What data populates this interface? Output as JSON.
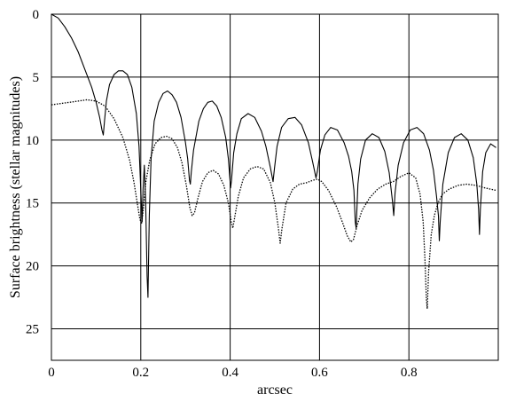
{
  "chart_data": {
    "type": "line",
    "title": "",
    "xlabel": "arcsec",
    "ylabel": "Surface brightness (stellar magnitudes)",
    "xlim": [
      0,
      1.0
    ],
    "ylim": [
      27.5,
      0
    ],
    "y_inverted": true,
    "grid": true,
    "legend": "none",
    "x_ticks": [
      0,
      0.2,
      0.4,
      0.6,
      0.8
    ],
    "x_tick_labels": [
      "0",
      "0.2",
      "0.4",
      "0.6",
      "0.8"
    ],
    "y_ticks": [
      0,
      5,
      10,
      15,
      20,
      25
    ],
    "y_tick_labels": [
      "0",
      "5",
      "10",
      "15",
      "20",
      "25"
    ],
    "series": [
      {
        "style": "solid",
        "color": "#000000",
        "points": [
          [
            0.0,
            0.0
          ],
          [
            0.015,
            0.3
          ],
          [
            0.03,
            1.0
          ],
          [
            0.045,
            1.9
          ],
          [
            0.06,
            3.0
          ],
          [
            0.075,
            4.4
          ],
          [
            0.09,
            5.8
          ],
          [
            0.1,
            7.0
          ],
          [
            0.108,
            8.2
          ],
          [
            0.113,
            9.2
          ],
          [
            0.116,
            9.6
          ],
          [
            0.119,
            8.4
          ],
          [
            0.123,
            6.9
          ],
          [
            0.13,
            5.6
          ],
          [
            0.14,
            4.8
          ],
          [
            0.15,
            4.5
          ],
          [
            0.16,
            4.5
          ],
          [
            0.17,
            4.8
          ],
          [
            0.18,
            5.8
          ],
          [
            0.19,
            7.9
          ],
          [
            0.196,
            10.5
          ],
          [
            0.2,
            14.0
          ],
          [
            0.203,
            16.5
          ],
          [
            0.205,
            14.0
          ],
          [
            0.208,
            12.0
          ],
          [
            0.211,
            15.0
          ],
          [
            0.214,
            20.8
          ],
          [
            0.216,
            22.5
          ],
          [
            0.219,
            16.0
          ],
          [
            0.223,
            11.5
          ],
          [
            0.23,
            8.5
          ],
          [
            0.24,
            7.0
          ],
          [
            0.25,
            6.3
          ],
          [
            0.26,
            6.1
          ],
          [
            0.27,
            6.4
          ],
          [
            0.28,
            7.0
          ],
          [
            0.29,
            8.2
          ],
          [
            0.3,
            10.2
          ],
          [
            0.305,
            11.5
          ],
          [
            0.309,
            13.2
          ],
          [
            0.311,
            13.5
          ],
          [
            0.313,
            12.5
          ],
          [
            0.318,
            10.8
          ],
          [
            0.33,
            8.5
          ],
          [
            0.34,
            7.5
          ],
          [
            0.35,
            7.0
          ],
          [
            0.36,
            6.9
          ],
          [
            0.37,
            7.3
          ],
          [
            0.38,
            8.2
          ],
          [
            0.39,
            9.8
          ],
          [
            0.396,
            11.5
          ],
          [
            0.401,
            13.8
          ],
          [
            0.403,
            13.2
          ],
          [
            0.408,
            11.0
          ],
          [
            0.415,
            9.5
          ],
          [
            0.425,
            8.3
          ],
          [
            0.44,
            7.9
          ],
          [
            0.455,
            8.2
          ],
          [
            0.47,
            9.3
          ],
          [
            0.48,
            10.5
          ],
          [
            0.49,
            12.2
          ],
          [
            0.496,
            13.3
          ],
          [
            0.499,
            12.3
          ],
          [
            0.505,
            10.5
          ],
          [
            0.515,
            9.0
          ],
          [
            0.53,
            8.3
          ],
          [
            0.545,
            8.2
          ],
          [
            0.56,
            8.8
          ],
          [
            0.575,
            10.2
          ],
          [
            0.585,
            11.8
          ],
          [
            0.592,
            13.0
          ],
          [
            0.595,
            12.5
          ],
          [
            0.602,
            10.8
          ],
          [
            0.612,
            9.6
          ],
          [
            0.625,
            9.0
          ],
          [
            0.64,
            9.2
          ],
          [
            0.655,
            10.2
          ],
          [
            0.665,
            11.3
          ],
          [
            0.672,
            12.5
          ],
          [
            0.677,
            14.0
          ],
          [
            0.68,
            16.5
          ],
          [
            0.682,
            17.0
          ],
          [
            0.686,
            13.5
          ],
          [
            0.692,
            11.5
          ],
          [
            0.703,
            10.0
          ],
          [
            0.718,
            9.5
          ],
          [
            0.733,
            9.8
          ],
          [
            0.746,
            10.9
          ],
          [
            0.756,
            12.6
          ],
          [
            0.763,
            14.8
          ],
          [
            0.766,
            16.0
          ],
          [
            0.769,
            14.2
          ],
          [
            0.776,
            12.0
          ],
          [
            0.788,
            10.2
          ],
          [
            0.803,
            9.2
          ],
          [
            0.818,
            9.0
          ],
          [
            0.833,
            9.5
          ],
          [
            0.846,
            10.8
          ],
          [
            0.855,
            12.4
          ],
          [
            0.862,
            14.5
          ],
          [
            0.866,
            16.0
          ],
          [
            0.868,
            18.0
          ],
          [
            0.87,
            16.5
          ],
          [
            0.876,
            13.5
          ],
          [
            0.888,
            11.0
          ],
          [
            0.902,
            9.8
          ],
          [
            0.917,
            9.5
          ],
          [
            0.932,
            10.0
          ],
          [
            0.944,
            11.4
          ],
          [
            0.952,
            13.5
          ],
          [
            0.956,
            15.5
          ],
          [
            0.958,
            17.5
          ],
          [
            0.96,
            15.5
          ],
          [
            0.965,
            12.5
          ],
          [
            0.972,
            11.0
          ],
          [
            0.983,
            10.3
          ],
          [
            0.995,
            10.6
          ]
        ]
      },
      {
        "style": "dotted",
        "color": "#000000",
        "points": [
          [
            0.0,
            7.2
          ],
          [
            0.02,
            7.1
          ],
          [
            0.04,
            7.0
          ],
          [
            0.06,
            6.9
          ],
          [
            0.08,
            6.8
          ],
          [
            0.1,
            6.9
          ],
          [
            0.12,
            7.3
          ],
          [
            0.14,
            8.3
          ],
          [
            0.16,
            9.8
          ],
          [
            0.175,
            11.6
          ],
          [
            0.185,
            13.4
          ],
          [
            0.192,
            15.0
          ],
          [
            0.198,
            16.3
          ],
          [
            0.202,
            16.6
          ],
          [
            0.206,
            15.4
          ],
          [
            0.211,
            13.4
          ],
          [
            0.22,
            11.6
          ],
          [
            0.232,
            10.3
          ],
          [
            0.245,
            9.8
          ],
          [
            0.258,
            9.7
          ],
          [
            0.27,
            9.9
          ],
          [
            0.282,
            10.6
          ],
          [
            0.292,
            11.8
          ],
          [
            0.302,
            13.6
          ],
          [
            0.31,
            15.4
          ],
          [
            0.315,
            16.0
          ],
          [
            0.32,
            15.8
          ],
          [
            0.328,
            14.6
          ],
          [
            0.338,
            13.3
          ],
          [
            0.35,
            12.6
          ],
          [
            0.362,
            12.4
          ],
          [
            0.374,
            12.7
          ],
          [
            0.386,
            13.6
          ],
          [
            0.396,
            15.0
          ],
          [
            0.403,
            16.6
          ],
          [
            0.406,
            17.0
          ],
          [
            0.41,
            16.2
          ],
          [
            0.418,
            14.5
          ],
          [
            0.43,
            13.0
          ],
          [
            0.445,
            12.3
          ],
          [
            0.46,
            12.1
          ],
          [
            0.475,
            12.3
          ],
          [
            0.49,
            13.4
          ],
          [
            0.5,
            15.0
          ],
          [
            0.508,
            17.0
          ],
          [
            0.512,
            18.2
          ],
          [
            0.516,
            17.0
          ],
          [
            0.525,
            15.0
          ],
          [
            0.54,
            13.9
          ],
          [
            0.555,
            13.5
          ],
          [
            0.57,
            13.4
          ],
          [
            0.585,
            13.2
          ],
          [
            0.595,
            13.1
          ],
          [
            0.605,
            13.3
          ],
          [
            0.62,
            14.0
          ],
          [
            0.638,
            15.3
          ],
          [
            0.652,
            16.6
          ],
          [
            0.662,
            17.6
          ],
          [
            0.67,
            18.1
          ],
          [
            0.676,
            17.9
          ],
          [
            0.684,
            16.8
          ],
          [
            0.695,
            15.6
          ],
          [
            0.712,
            14.6
          ],
          [
            0.73,
            13.9
          ],
          [
            0.748,
            13.5
          ],
          [
            0.765,
            13.3
          ],
          [
            0.782,
            12.9
          ],
          [
            0.8,
            12.6
          ],
          [
            0.815,
            13.0
          ],
          [
            0.825,
            14.3
          ],
          [
            0.832,
            16.5
          ],
          [
            0.836,
            19.5
          ],
          [
            0.839,
            22.6
          ],
          [
            0.841,
            23.4
          ],
          [
            0.844,
            20.5
          ],
          [
            0.85,
            17.5
          ],
          [
            0.857,
            16.0
          ],
          [
            0.865,
            15.0
          ],
          [
            0.875,
            14.3
          ],
          [
            0.89,
            13.9
          ],
          [
            0.91,
            13.6
          ],
          [
            0.93,
            13.5
          ],
          [
            0.95,
            13.6
          ],
          [
            0.97,
            13.8
          ],
          [
            0.995,
            14.0
          ]
        ]
      }
    ]
  }
}
